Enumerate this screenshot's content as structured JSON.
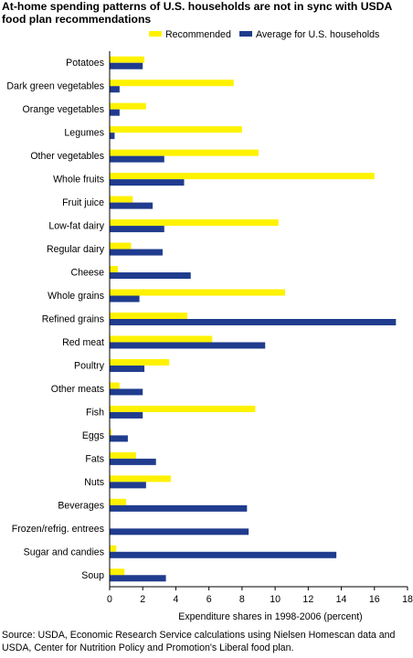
{
  "title": "At-home spending patterns of U.S. households are not in sync with USDA food plan recommendations",
  "source": "Source: USDA, Economic Research Service calculations using Nielsen Homescan data and USDA, Center for Nutrition Policy and Promotion's Liberal food plan.",
  "colors": {
    "recommended": "#FFF200",
    "average": "#203C8E",
    "axis": "#000000"
  },
  "chart_data": {
    "type": "bar",
    "orientation": "horizontal",
    "categories": [
      "Potatoes",
      "Dark green vegetables",
      "Orange vegetables",
      "Legumes",
      "Other vegetables",
      "Whole fruits",
      "Fruit juice",
      "Low-fat dairy",
      "Regular dairy",
      "Cheese",
      "Whole grains",
      "Refined grains",
      "Red meat",
      "Poultry",
      "Other meats",
      "Fish",
      "Eggs",
      "Fats",
      "Nuts",
      "Beverages",
      "Frozen/refrig. entrees",
      "Sugar and candies",
      "Soup"
    ],
    "series": [
      {
        "name": "Recommended",
        "color": "#FFF200",
        "values": [
          2.1,
          7.5,
          2.2,
          8.0,
          9.0,
          16.0,
          1.4,
          10.2,
          1.3,
          0.5,
          10.6,
          4.7,
          6.2,
          3.6,
          0.6,
          8.8,
          0.1,
          1.6,
          3.7,
          1.0,
          0.0,
          0.4,
          0.9
        ]
      },
      {
        "name": "Average for U.S. households",
        "color": "#203C8E",
        "values": [
          2.0,
          0.6,
          0.6,
          0.3,
          3.3,
          4.5,
          2.6,
          3.3,
          3.2,
          4.9,
          1.8,
          17.3,
          9.4,
          2.1,
          2.0,
          2.0,
          1.1,
          2.8,
          2.2,
          8.3,
          8.4,
          13.7,
          3.4
        ]
      }
    ],
    "xlabel": "Expenditure shares in 1998-2006 (percent)",
    "xlim": [
      0,
      18
    ],
    "xticks": [
      "0",
      "2",
      "4",
      "6",
      "8",
      "10",
      "12",
      "14",
      "16",
      "18"
    ],
    "grid": false,
    "legend": "top-right"
  }
}
